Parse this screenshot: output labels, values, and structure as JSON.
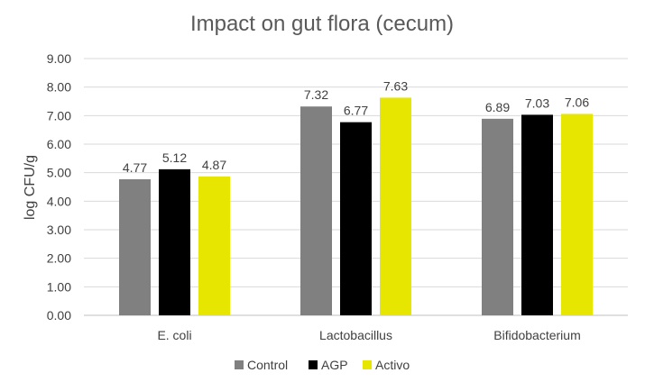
{
  "chart_data": {
    "type": "bar",
    "title": "Impact on gut flora (cecum)",
    "xlabel": "",
    "ylabel": "log CFU/g",
    "ylim": [
      0,
      9
    ],
    "y_ticks": [
      "0.00",
      "1.00",
      "2.00",
      "3.00",
      "4.00",
      "5.00",
      "6.00",
      "7.00",
      "8.00",
      "9.00"
    ],
    "grid": true,
    "legend_position": "bottom",
    "categories": [
      "E. coli",
      "Lactobacillus",
      "Bifidobacterium"
    ],
    "series": [
      {
        "name": "Control",
        "color": "#808080",
        "values": [
          4.77,
          7.32,
          6.89
        ]
      },
      {
        "name": "AGP",
        "color": "#000000",
        "values": [
          5.12,
          6.77,
          7.03
        ]
      },
      {
        "name": "Activo",
        "color": "#E6E600",
        "values": [
          4.87,
          7.63,
          7.06
        ]
      }
    ]
  }
}
